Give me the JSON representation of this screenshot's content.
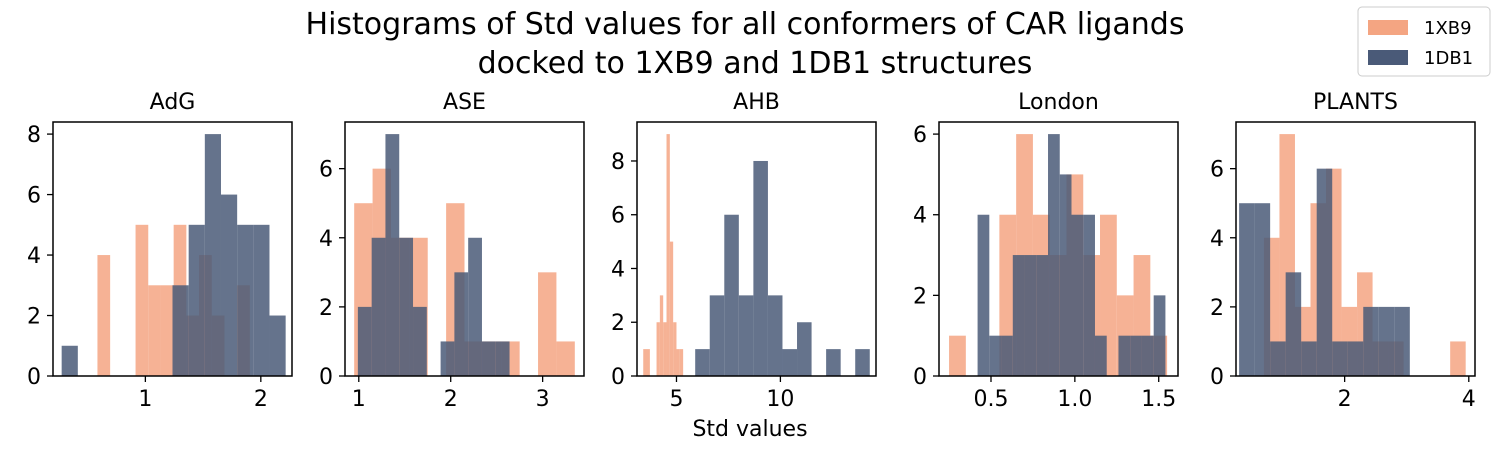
{
  "title_line1": "Histograms of Std values for all conformers of CAR ligands",
  "title_line2": "docked to 1XB9 and 1DB1 structures",
  "xlabel": "Std values",
  "colors": {
    "1XB9": "#f4a582",
    "1DB1": "#4a5a78",
    "overlap": "#5e4a5e"
  },
  "legend": {
    "position": "top-right",
    "items": [
      {
        "label": "1XB9",
        "color": "#f4a582"
      },
      {
        "label": "1DB1",
        "color": "#4a5a78"
      }
    ]
  },
  "chart_data": [
    {
      "type": "bar",
      "title": "AdG",
      "xlim": [
        0.2,
        2.27
      ],
      "ylim": [
        0,
        8.4
      ],
      "xticks": [
        1,
        2
      ],
      "yticks": [
        0,
        2,
        4,
        6,
        8
      ],
      "series": [
        {
          "name": "1XB9",
          "bins": [
            [
              0.585,
              0.695,
              4
            ],
            [
              0.695,
              0.805,
              0
            ],
            [
              0.805,
              0.915,
              0
            ],
            [
              0.915,
              1.025,
              5
            ],
            [
              1.025,
              1.135,
              3
            ],
            [
              1.135,
              1.245,
              3
            ],
            [
              1.245,
              1.355,
              5
            ],
            [
              1.355,
              1.465,
              2
            ],
            [
              1.465,
              1.575,
              4
            ],
            [
              1.575,
              1.685,
              2
            ],
            [
              1.685,
              1.795,
              0
            ],
            [
              1.795,
              1.905,
              3
            ]
          ]
        },
        {
          "name": "1DB1",
          "bins": [
            [
              0.275,
              0.415,
              1
            ],
            [
              0.415,
              0.555,
              0
            ],
            [
              0.555,
              0.695,
              0
            ],
            [
              0.695,
              0.835,
              0
            ],
            [
              0.835,
              0.975,
              0
            ],
            [
              0.975,
              1.115,
              0
            ],
            [
              1.115,
              1.235,
              0
            ],
            [
              1.235,
              1.375,
              3
            ],
            [
              1.375,
              1.515,
              5
            ],
            [
              1.515,
              1.655,
              8
            ],
            [
              1.655,
              1.795,
              6
            ],
            [
              1.795,
              1.935,
              5
            ],
            [
              1.935,
              2.075,
              5
            ],
            [
              2.075,
              2.215,
              2
            ]
          ]
        }
      ]
    },
    {
      "type": "bar",
      "title": "ASE",
      "xlim": [
        0.85,
        3.45
      ],
      "ylim": [
        0,
        7.35
      ],
      "xticks": [
        1,
        2,
        3
      ],
      "yticks": [
        0,
        2,
        4,
        6
      ],
      "series": [
        {
          "name": "1XB9",
          "bins": [
            [
              0.95,
              1.15,
              5
            ],
            [
              1.15,
              1.35,
              6
            ],
            [
              1.35,
              1.55,
              4
            ],
            [
              1.55,
              1.75,
              4
            ],
            [
              1.75,
              1.95,
              0
            ],
            [
              1.95,
              2.15,
              5
            ],
            [
              2.15,
              2.35,
              1
            ],
            [
              2.35,
              2.55,
              1
            ],
            [
              2.55,
              2.75,
              1
            ],
            [
              2.75,
              2.95,
              0
            ],
            [
              2.95,
              3.15,
              3
            ],
            [
              3.15,
              3.35,
              1
            ]
          ]
        },
        {
          "name": "1DB1",
          "bins": [
            [
              0.99,
              1.14,
              2
            ],
            [
              1.14,
              1.29,
              4
            ],
            [
              1.29,
              1.44,
              7
            ],
            [
              1.44,
              1.59,
              4
            ],
            [
              1.59,
              1.74,
              2
            ],
            [
              1.74,
              1.89,
              0
            ],
            [
              1.89,
              2.04,
              1
            ],
            [
              2.04,
              2.19,
              3
            ],
            [
              2.19,
              2.34,
              4
            ],
            [
              2.34,
              2.49,
              1
            ],
            [
              2.49,
              2.64,
              1
            ],
            [
              2.64,
              2.79,
              0
            ]
          ]
        }
      ]
    },
    {
      "type": "bar",
      "title": "AHB",
      "xlim": [
        3.1,
        14.6
      ],
      "ylim": [
        0,
        9.45
      ],
      "xticks": [
        5,
        10
      ],
      "yticks": [
        0,
        2,
        4,
        6,
        8
      ],
      "series": [
        {
          "name": "1XB9",
          "bins": [
            [
              3.4,
              3.72,
              1
            ],
            [
              3.72,
              4.04,
              0
            ],
            [
              4.04,
              4.2,
              2
            ],
            [
              4.2,
              4.36,
              3
            ],
            [
              4.36,
              4.52,
              2
            ],
            [
              4.52,
              4.68,
              9
            ],
            [
              4.68,
              4.84,
              5
            ],
            [
              4.84,
              5.0,
              2
            ],
            [
              5.0,
              5.16,
              1
            ],
            [
              5.16,
              5.32,
              1
            ]
          ]
        },
        {
          "name": "1DB1",
          "bins": [
            [
              5.9,
              6.6,
              1
            ],
            [
              6.6,
              7.3,
              3
            ],
            [
              7.3,
              8.0,
              6
            ],
            [
              8.0,
              8.7,
              3
            ],
            [
              8.7,
              9.4,
              8
            ],
            [
              9.4,
              10.1,
              3
            ],
            [
              10.1,
              10.8,
              1
            ],
            [
              10.8,
              11.5,
              2
            ],
            [
              11.5,
              12.2,
              0
            ],
            [
              12.2,
              12.9,
              1
            ],
            [
              12.9,
              13.6,
              0
            ],
            [
              13.6,
              14.3,
              1
            ]
          ]
        }
      ]
    },
    {
      "type": "bar",
      "title": "London",
      "xlim": [
        0.19,
        1.615
      ],
      "ylim": [
        0,
        6.3
      ],
      "xticks": [
        0.5,
        1.0,
        1.5
      ],
      "yticks": [
        0,
        2,
        4,
        6
      ],
      "series": [
        {
          "name": "1XB9",
          "bins": [
            [
              0.25,
              0.35,
              1
            ],
            [
              0.35,
              0.45,
              0
            ],
            [
              0.45,
              0.55,
              0
            ],
            [
              0.55,
              0.65,
              4
            ],
            [
              0.65,
              0.75,
              6
            ],
            [
              0.75,
              0.85,
              4
            ],
            [
              0.85,
              0.95,
              3
            ],
            [
              0.95,
              1.05,
              5
            ],
            [
              1.05,
              1.15,
              3
            ],
            [
              1.15,
              1.25,
              4
            ],
            [
              1.25,
              1.35,
              2
            ],
            [
              1.35,
              1.45,
              3
            ],
            [
              1.45,
              1.55,
              1
            ]
          ]
        },
        {
          "name": "1DB1",
          "bins": [
            [
              0.42,
              0.49,
              4
            ],
            [
              0.49,
              0.56,
              1
            ],
            [
              0.56,
              0.63,
              1
            ],
            [
              0.63,
              0.7,
              3
            ],
            [
              0.7,
              0.77,
              3
            ],
            [
              0.77,
              0.84,
              3
            ],
            [
              0.84,
              0.91,
              6
            ],
            [
              0.91,
              0.98,
              5
            ],
            [
              0.98,
              1.05,
              4
            ],
            [
              1.05,
              1.12,
              4
            ],
            [
              1.12,
              1.19,
              1
            ],
            [
              1.19,
              1.26,
              0
            ],
            [
              1.26,
              1.33,
              1
            ],
            [
              1.33,
              1.4,
              1
            ],
            [
              1.4,
              1.47,
              1
            ],
            [
              1.47,
              1.54,
              2
            ]
          ]
        }
      ]
    },
    {
      "type": "bar",
      "title": "PLANTS",
      "xlim": [
        0.25,
        4.1
      ],
      "ylim": [
        0,
        7.35
      ],
      "xticks": [
        2,
        4
      ],
      "yticks": [
        0,
        2,
        4,
        6
      ],
      "series": [
        {
          "name": "1XB9",
          "bins": [
            [
              0.7,
              0.95,
              4
            ],
            [
              0.95,
              1.2,
              7
            ],
            [
              1.2,
              1.45,
              2
            ],
            [
              1.45,
              1.7,
              5
            ],
            [
              1.7,
              1.95,
              6
            ],
            [
              1.95,
              2.2,
              2
            ],
            [
              2.2,
              2.45,
              3
            ],
            [
              2.45,
              2.7,
              1
            ],
            [
              2.7,
              2.95,
              1
            ],
            [
              2.95,
              3.2,
              0
            ],
            [
              3.2,
              3.45,
              0
            ],
            [
              3.45,
              3.7,
              0
            ],
            [
              3.7,
              3.95,
              1
            ]
          ]
        },
        {
          "name": "1DB1",
          "bins": [
            [
              0.3,
              0.55,
              5
            ],
            [
              0.55,
              0.8,
              5
            ],
            [
              0.8,
              1.05,
              1
            ],
            [
              1.05,
              1.3,
              3
            ],
            [
              1.3,
              1.55,
              1
            ],
            [
              1.55,
              1.8,
              6
            ],
            [
              1.8,
              2.05,
              1
            ],
            [
              2.05,
              2.3,
              1
            ],
            [
              2.3,
              2.55,
              2
            ],
            [
              2.55,
              2.8,
              2
            ],
            [
              2.8,
              3.05,
              2
            ]
          ]
        }
      ]
    }
  ]
}
